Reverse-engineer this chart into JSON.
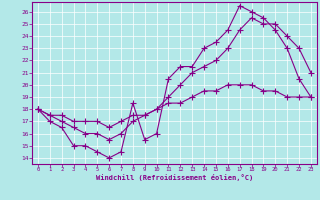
{
  "xlabel": "Windchill (Refroidissement éolien,°C)",
  "bg_color": "#b3e8e8",
  "line_color": "#880088",
  "xlim": [
    -0.5,
    23.5
  ],
  "ylim": [
    13.5,
    26.8
  ],
  "xticks": [
    0,
    1,
    2,
    3,
    4,
    5,
    6,
    7,
    8,
    9,
    10,
    11,
    12,
    13,
    14,
    15,
    16,
    17,
    18,
    19,
    20,
    21,
    22,
    23
  ],
  "yticks": [
    14,
    15,
    16,
    17,
    18,
    19,
    20,
    21,
    22,
    23,
    24,
    25,
    26
  ],
  "grid_color": "#ffffff",
  "line1_x": [
    0,
    1,
    2,
    3,
    4,
    5,
    6,
    7,
    8,
    9,
    10,
    11,
    12,
    13,
    14,
    15,
    16,
    17,
    18,
    19,
    20,
    21,
    22,
    23
  ],
  "line1_y": [
    18,
    17,
    16.5,
    15,
    15,
    14.5,
    14,
    14.5,
    18.5,
    15.5,
    16,
    20.5,
    21.5,
    21.5,
    23,
    23.5,
    24.5,
    26.5,
    26,
    25.5,
    24.5,
    23,
    20.5,
    19
  ],
  "line2_x": [
    0,
    1,
    2,
    3,
    4,
    5,
    6,
    7,
    8,
    9,
    10,
    11,
    12,
    13,
    14,
    15,
    16,
    17,
    18,
    19,
    20,
    21,
    22,
    23
  ],
  "line2_y": [
    18,
    17.5,
    17,
    16.5,
    16,
    16,
    15.5,
    16,
    17,
    17.5,
    18,
    19,
    20,
    21,
    21.5,
    22,
    23,
    24.5,
    25.5,
    25,
    25,
    24,
    23,
    21
  ],
  "line3_x": [
    0,
    1,
    2,
    3,
    4,
    5,
    6,
    7,
    8,
    9,
    10,
    11,
    12,
    13,
    14,
    15,
    16,
    17,
    18,
    19,
    20,
    21,
    22,
    23
  ],
  "line3_y": [
    18,
    17.5,
    17.5,
    17,
    17,
    17,
    16.5,
    17,
    17.5,
    17.5,
    18,
    18.5,
    18.5,
    19,
    19.5,
    19.5,
    20,
    20,
    20,
    19.5,
    19.5,
    19,
    19,
    19
  ]
}
